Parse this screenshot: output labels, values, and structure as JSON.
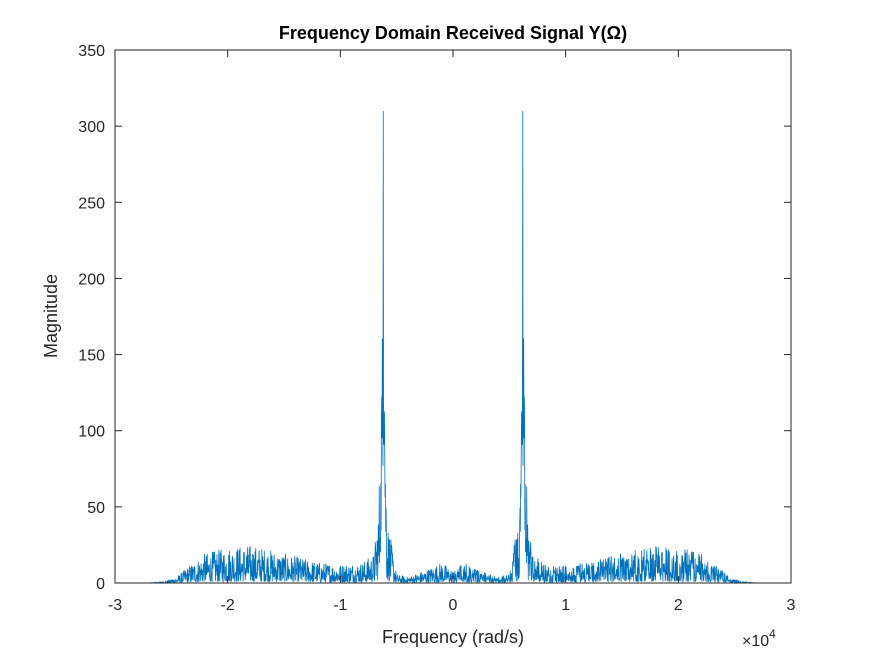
{
  "chart_data": {
    "type": "line",
    "title": "Frequency Domain Received Signal Y(Ω)",
    "xlabel": "Frequency (rad/s)",
    "ylabel": "Magnitude",
    "x_multiplier": "×10",
    "x_multiplier_exponent": "4",
    "xlim": [
      -3,
      3
    ],
    "ylim": [
      0,
      350
    ],
    "xticks": [
      "-3",
      "-2",
      "-1",
      "0",
      "1",
      "2",
      "3"
    ],
    "yticks": [
      "0",
      "50",
      "100",
      "150",
      "200",
      "250",
      "300",
      "350"
    ],
    "grid": false,
    "legend": "none",
    "series_color": "#0072BD",
    "envelope": {
      "x": [
        -3.0,
        -2.7,
        -2.55,
        -2.45,
        -2.35,
        -2.2,
        -2.0,
        -1.8,
        -1.7,
        -1.5,
        -1.2,
        -1.0,
        -0.8,
        -0.7,
        -0.66,
        -0.64,
        -0.62,
        -0.6,
        -0.58,
        -0.5,
        -0.4,
        -0.25,
        -0.1,
        0.0,
        0.1,
        0.25,
        0.4,
        0.5,
        0.58,
        0.6,
        0.62,
        0.64,
        0.66,
        0.7,
        0.8,
        1.0,
        1.2,
        1.5,
        1.7,
        1.8,
        2.0,
        2.2,
        2.35,
        2.45,
        2.55,
        2.7,
        3.0
      ],
      "y": [
        0,
        0,
        1,
        3,
        8,
        14,
        17,
        18,
        17,
        14,
        10,
        9,
        10,
        14,
        40,
        80,
        310,
        80,
        30,
        4,
        3,
        6,
        10,
        6,
        10,
        6,
        3,
        4,
        30,
        80,
        310,
        80,
        40,
        14,
        10,
        9,
        10,
        14,
        17,
        18,
        17,
        14,
        8,
        3,
        1,
        0,
        0
      ]
    }
  }
}
